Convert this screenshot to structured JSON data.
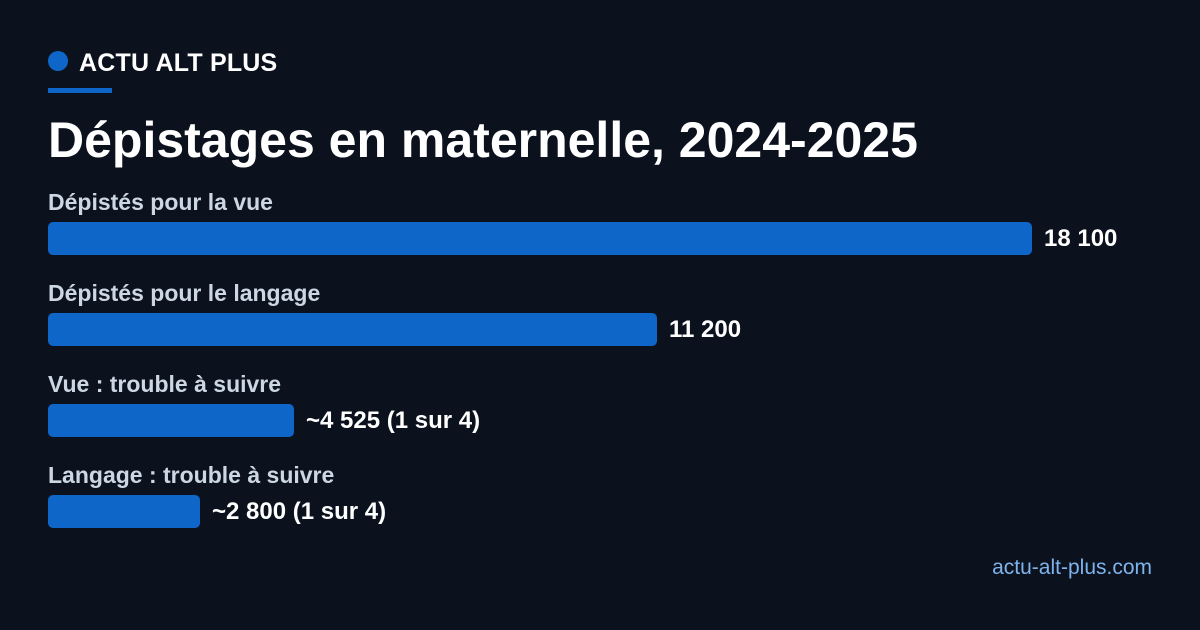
{
  "brand": {
    "name": "ACTU ALT PLUS",
    "accent_color": "#0f66c9"
  },
  "site_url": "actu-alt-plus.com",
  "chart_data": {
    "type": "bar",
    "orientation": "horizontal",
    "title": "Dépistages en maternelle, 2024-2025",
    "categories": [
      "Dépistés pour la vue",
      "Dépistés pour le langage",
      "Vue : trouble à suivre",
      "Langage : trouble à suivre"
    ],
    "values": [
      18100,
      11200,
      4525,
      2800
    ],
    "value_labels": [
      "18 100",
      "11 200",
      "~4 525 (1 sur 4)",
      "~2 800 (1 sur 4)"
    ],
    "xlim": [
      0,
      18100
    ],
    "grid": false,
    "bar_color": "#0f66c9"
  }
}
